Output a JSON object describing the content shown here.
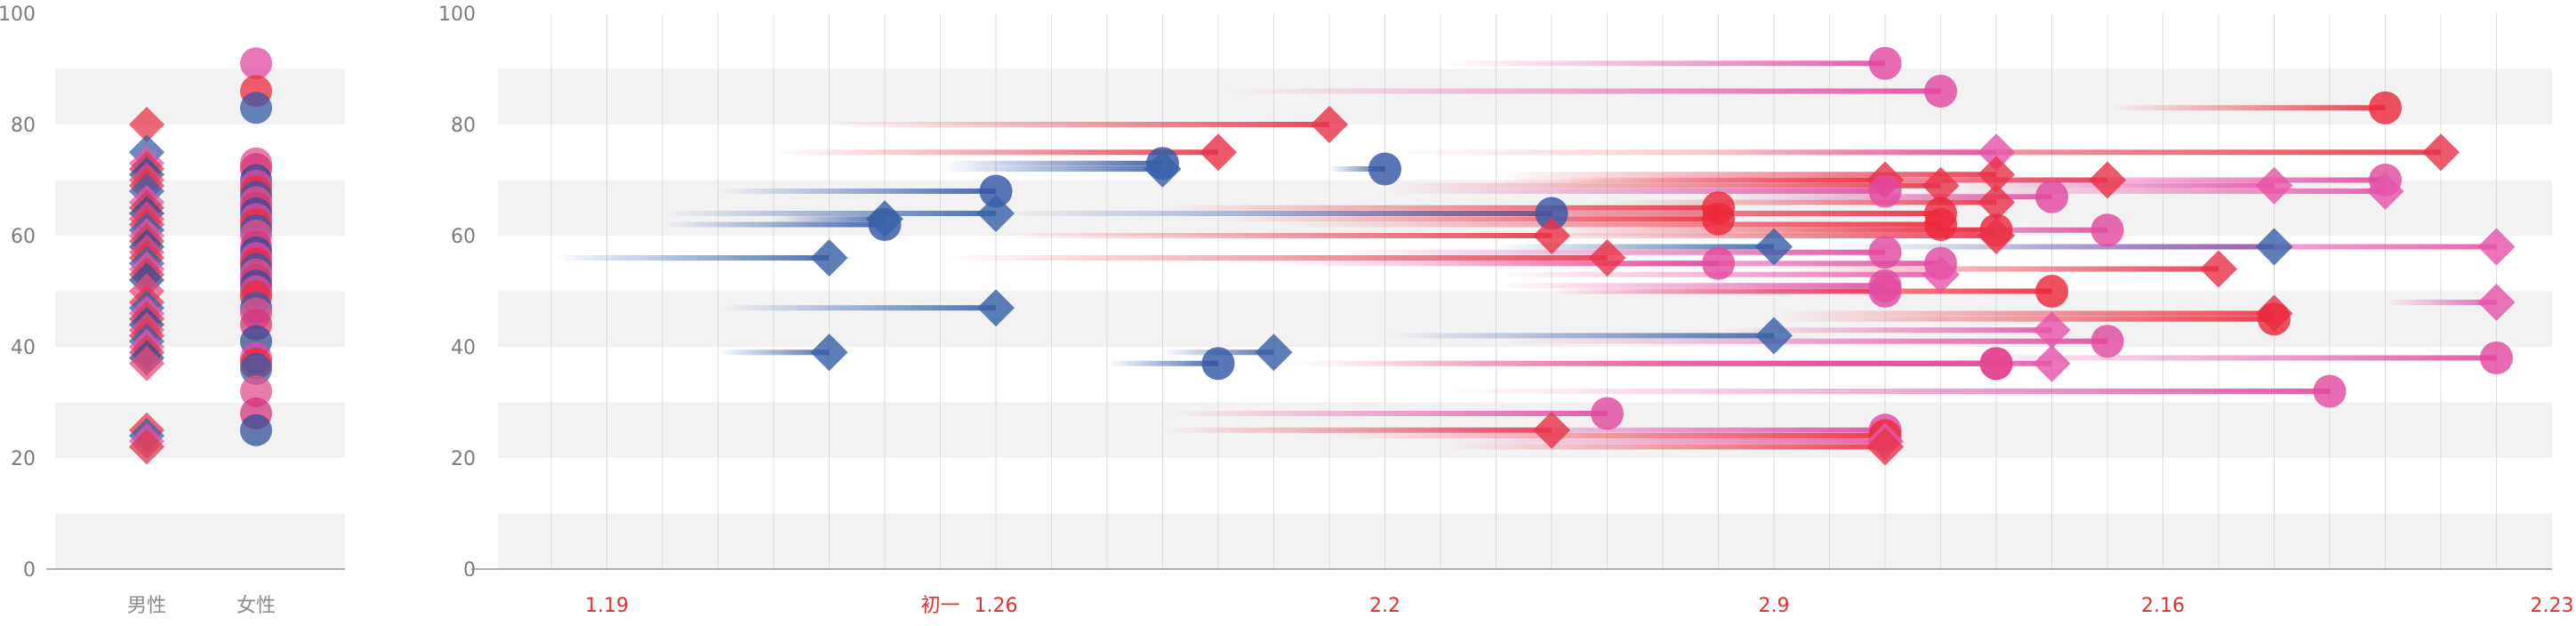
{
  "chart_data": [
    {
      "type": "scatter",
      "title": "",
      "xlabel": "",
      "ylabel": "",
      "ylim": [
        0,
        100
      ],
      "yticks": [
        "0",
        "20",
        "40",
        "60",
        "80",
        "100"
      ],
      "categories": [
        "男性",
        "女性"
      ],
      "grid": "horizontal bands",
      "series": [
        {
          "category": "男性",
          "marker": "diamond",
          "values": [
            80,
            75,
            73,
            72,
            71,
            70,
            69,
            68,
            66,
            65,
            64,
            63,
            62,
            61,
            60,
            59,
            58,
            57,
            56,
            55,
            54,
            53,
            52,
            50,
            48,
            47,
            46,
            45,
            44,
            43,
            42,
            41,
            40,
            39,
            38,
            37,
            25,
            24,
            23,
            22
          ]
        },
        {
          "category": "女性",
          "marker": "circle",
          "values": [
            91,
            86,
            83,
            73,
            72,
            70,
            69,
            68,
            67,
            66,
            65,
            64,
            63,
            62,
            61,
            60,
            58,
            57,
            56,
            55,
            54,
            53,
            52,
            51,
            50,
            49,
            47,
            46,
            44,
            41,
            38,
            37,
            36,
            32,
            28,
            25
          ]
        }
      ]
    },
    {
      "type": "scatter",
      "title": "",
      "xlabel": "",
      "ylabel": "",
      "ylim": [
        0,
        100
      ],
      "yticks": [
        "0",
        "20",
        "40",
        "60",
        "80",
        "100"
      ],
      "xtick_labels": [
        "1.19",
        "初一",
        "1.26",
        "2.2",
        "2.9",
        "2.16",
        "2.23"
      ],
      "grid": "horizontal bands + vertical daily lines",
      "note_x": "x = day index from 1.19 (0) to 2.23 (35)",
      "colors": {
        "diamond_red": "#e8344a",
        "diamond_pink": "#e655a8",
        "diamond_blue": "#3a62a8",
        "circle_red": "#ec2a3c",
        "circle_pink": "#e24aa0",
        "circle_blue": "#3658a6"
      },
      "points": [
        {
          "x": 24,
          "y": 91,
          "shape": "circle",
          "color": "pink",
          "trail": 8
        },
        {
          "x": 25,
          "y": 86,
          "shape": "circle",
          "color": "pink",
          "trail": 13
        },
        {
          "x": 33,
          "y": 83,
          "shape": "circle",
          "color": "red",
          "trail": 5
        },
        {
          "x": 14,
          "y": 80,
          "shape": "diamond",
          "color": "red",
          "trail": 9
        },
        {
          "x": 34,
          "y": 75,
          "shape": "diamond",
          "color": "red",
          "trail": 19
        },
        {
          "x": 12,
          "y": 75,
          "shape": "diamond",
          "color": "red",
          "trail": 8
        },
        {
          "x": 26,
          "y": 75,
          "shape": "diamond",
          "color": "pink",
          "trail": 5
        },
        {
          "x": 11,
          "y": 73,
          "shape": "circle",
          "color": "blue",
          "trail": 4
        },
        {
          "x": 11,
          "y": 72,
          "shape": "diamond",
          "color": "blue",
          "trail": 4
        },
        {
          "x": 15,
          "y": 72,
          "shape": "circle",
          "color": "blue",
          "trail": 1
        },
        {
          "x": 24,
          "y": 70,
          "shape": "diamond",
          "color": "red",
          "trail": 7
        },
        {
          "x": 28,
          "y": 70,
          "shape": "diamond",
          "color": "red",
          "trail": 10
        },
        {
          "x": 33,
          "y": 70,
          "shape": "circle",
          "color": "pink",
          "trail": 8
        },
        {
          "x": 25,
          "y": 69,
          "shape": "diamond",
          "color": "red",
          "trail": 10
        },
        {
          "x": 26,
          "y": 71,
          "shape": "diamond",
          "color": "red",
          "trail": 9
        },
        {
          "x": 31,
          "y": 69,
          "shape": "diamond",
          "color": "pink",
          "trail": 6
        },
        {
          "x": 33,
          "y": 68,
          "shape": "diamond",
          "color": "pink",
          "trail": 8
        },
        {
          "x": 24,
          "y": 68,
          "shape": "circle",
          "color": "pink",
          "trail": 9
        },
        {
          "x": 8,
          "y": 68,
          "shape": "circle",
          "color": "blue",
          "trail": 5
        },
        {
          "x": 27,
          "y": 67,
          "shape": "circle",
          "color": "pink",
          "trail": 6
        },
        {
          "x": 26,
          "y": 66,
          "shape": "diamond",
          "color": "red",
          "trail": 7
        },
        {
          "x": 8,
          "y": 64,
          "shape": "diamond",
          "color": "blue",
          "trail": 6
        },
        {
          "x": 18,
          "y": 64,
          "shape": "circle",
          "color": "blue",
          "trail": 10
        },
        {
          "x": 21,
          "y": 65,
          "shape": "circle",
          "color": "red",
          "trail": 10
        },
        {
          "x": 21,
          "y": 63,
          "shape": "circle",
          "color": "red",
          "trail": 9
        },
        {
          "x": 25,
          "y": 64,
          "shape": "circle",
          "color": "red",
          "trail": 12
        },
        {
          "x": 25,
          "y": 62,
          "shape": "circle",
          "color": "red",
          "trail": 12
        },
        {
          "x": 6,
          "y": 62,
          "shape": "circle",
          "color": "blue",
          "trail": 4
        },
        {
          "x": 6,
          "y": 63,
          "shape": "diamond",
          "color": "blue",
          "trail": 2
        },
        {
          "x": 28,
          "y": 61,
          "shape": "circle",
          "color": "pink",
          "trail": 6
        },
        {
          "x": 26,
          "y": 61,
          "shape": "circle",
          "color": "red",
          "trail": 8
        },
        {
          "x": 26,
          "y": 60,
          "shape": "diamond",
          "color": "red",
          "trail": 9
        },
        {
          "x": 18,
          "y": 60,
          "shape": "diamond",
          "color": "red",
          "trail": 10
        },
        {
          "x": 22,
          "y": 58,
          "shape": "diamond",
          "color": "blue",
          "trail": 5
        },
        {
          "x": 31,
          "y": 58,
          "shape": "diamond",
          "color": "blue",
          "trail": 8
        },
        {
          "x": 35,
          "y": 58,
          "shape": "diamond",
          "color": "pink",
          "trail": 10
        },
        {
          "x": 5,
          "y": 56,
          "shape": "diamond",
          "color": "blue",
          "trail": 5
        },
        {
          "x": 19,
          "y": 56,
          "shape": "diamond",
          "color": "red",
          "trail": 12
        },
        {
          "x": 21,
          "y": 55,
          "shape": "circle",
          "color": "pink",
          "trail": 8
        },
        {
          "x": 24,
          "y": 57,
          "shape": "circle",
          "color": "pink",
          "trail": 10
        },
        {
          "x": 25,
          "y": 55,
          "shape": "circle",
          "color": "pink",
          "trail": 9
        },
        {
          "x": 30,
          "y": 54,
          "shape": "diamond",
          "color": "red",
          "trail": 8
        },
        {
          "x": 25,
          "y": 53,
          "shape": "diamond",
          "color": "pink",
          "trail": 8
        },
        {
          "x": 24,
          "y": 51,
          "shape": "circle",
          "color": "pink",
          "trail": 7
        },
        {
          "x": 24,
          "y": 50,
          "shape": "circle",
          "color": "pink",
          "trail": 6
        },
        {
          "x": 27,
          "y": 50,
          "shape": "circle",
          "color": "red",
          "trail": 9
        },
        {
          "x": 35,
          "y": 48,
          "shape": "diamond",
          "color": "pink",
          "trail": 2
        },
        {
          "x": 8,
          "y": 47,
          "shape": "diamond",
          "color": "blue",
          "trail": 5
        },
        {
          "x": 31,
          "y": 46,
          "shape": "diamond",
          "color": "red",
          "trail": 9
        },
        {
          "x": 31,
          "y": 45,
          "shape": "circle",
          "color": "red",
          "trail": 9
        },
        {
          "x": 27,
          "y": 43,
          "shape": "diamond",
          "color": "pink",
          "trail": 6
        },
        {
          "x": 22,
          "y": 42,
          "shape": "diamond",
          "color": "blue",
          "trail": 7
        },
        {
          "x": 28,
          "y": 41,
          "shape": "circle",
          "color": "pink",
          "trail": 11
        },
        {
          "x": 5,
          "y": 39,
          "shape": "diamond",
          "color": "blue",
          "trail": 2
        },
        {
          "x": 13,
          "y": 39,
          "shape": "diamond",
          "color": "blue",
          "trail": 2
        },
        {
          "x": 35,
          "y": 38,
          "shape": "circle",
          "color": "pink",
          "trail": 10
        },
        {
          "x": 12,
          "y": 37,
          "shape": "circle",
          "color": "blue",
          "trail": 2
        },
        {
          "x": 26,
          "y": 37,
          "shape": "circle",
          "color": "red",
          "trail": 12
        },
        {
          "x": 26,
          "y": 37,
          "shape": "circle",
          "color": "pink",
          "trail": 13
        },
        {
          "x": 27,
          "y": 37,
          "shape": "diamond",
          "color": "pink",
          "trail": 12
        },
        {
          "x": 32,
          "y": 32,
          "shape": "circle",
          "color": "pink",
          "trail": 16
        },
        {
          "x": 19,
          "y": 28,
          "shape": "circle",
          "color": "pink",
          "trail": 8
        },
        {
          "x": 18,
          "y": 25,
          "shape": "diamond",
          "color": "red",
          "trail": 7
        },
        {
          "x": 24,
          "y": 25,
          "shape": "circle",
          "color": "pink",
          "trail": 9
        },
        {
          "x": 24,
          "y": 24,
          "shape": "circle",
          "color": "red",
          "trail": 10
        },
        {
          "x": 24,
          "y": 23,
          "shape": "diamond",
          "color": "pink",
          "trail": 8
        },
        {
          "x": 24,
          "y": 22,
          "shape": "diamond",
          "color": "red",
          "trail": 8
        }
      ]
    }
  ]
}
